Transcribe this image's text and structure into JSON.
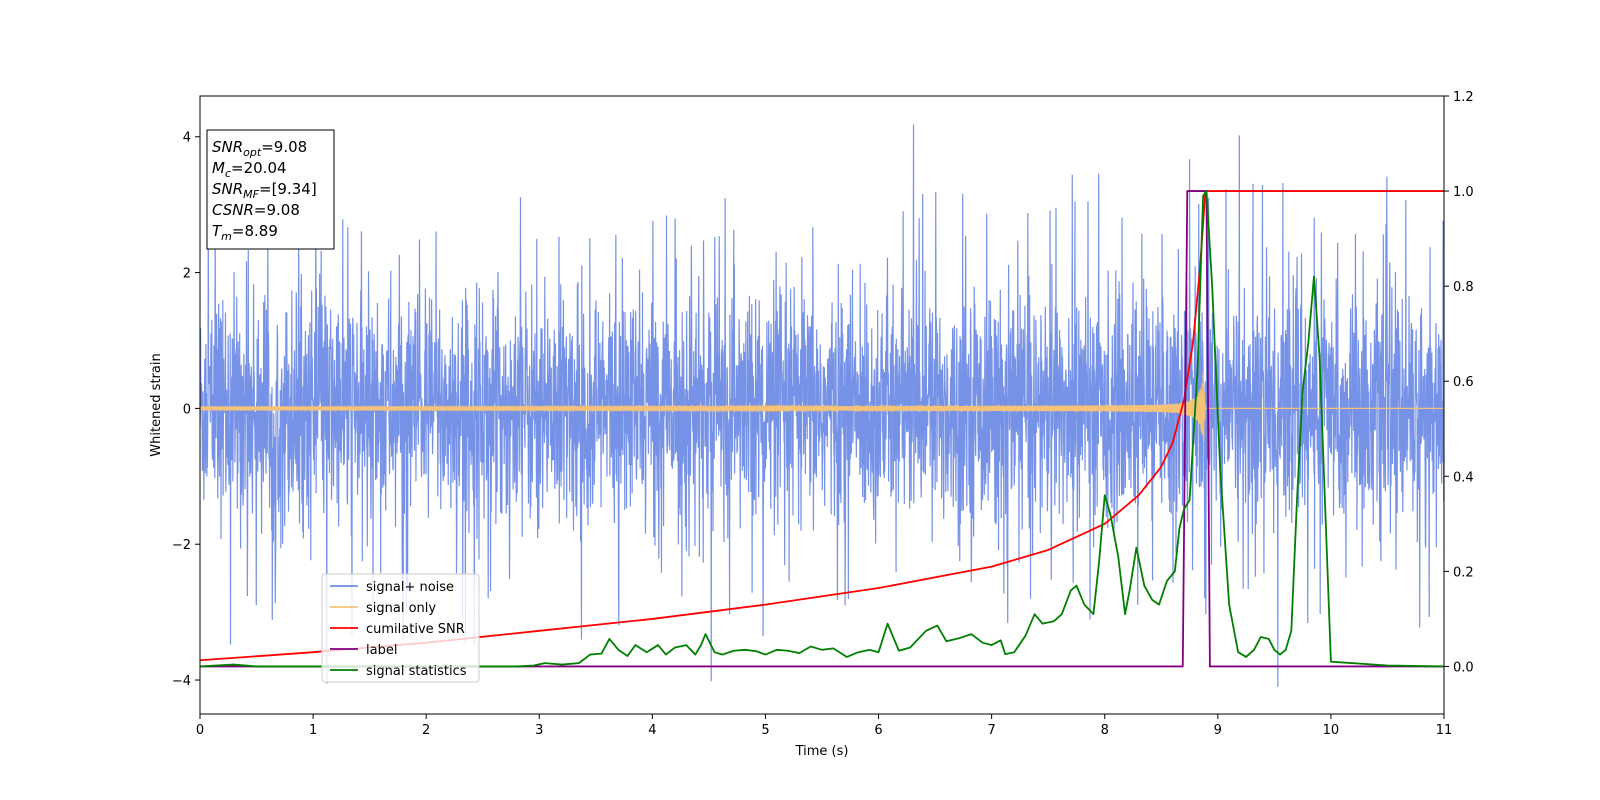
{
  "chart_data": {
    "type": "line",
    "xlabel": "Time (s)",
    "ylabel": "Whitened strain",
    "xlim": [
      0,
      11
    ],
    "ylim": [
      -4.5,
      4.6
    ],
    "y2lim": [
      -0.1,
      1.2
    ],
    "x_ticks": [
      0,
      1,
      2,
      3,
      4,
      5,
      6,
      7,
      8,
      9,
      10,
      11
    ],
    "y_ticks": [
      -4,
      -2,
      0,
      2,
      4
    ],
    "y2_ticks": [
      "0.0",
      "0.2",
      "0.4",
      "0.6",
      "0.8",
      "1.0",
      "1.2"
    ],
    "legend_position": "lower-left",
    "annotation": {
      "lines": [
        {
          "name": "SNR",
          "sub": "opt",
          "value": "=9.08"
        },
        {
          "name": "M",
          "sub": "c",
          "value": "=20.04"
        },
        {
          "name": "SNR",
          "sub": "MF",
          "value": "=[9.34]"
        },
        {
          "name": "CSNR",
          "sub": "",
          "value": "=9.08"
        },
        {
          "name": "T",
          "sub": "m",
          "value": "=8.89"
        }
      ]
    },
    "series": [
      {
        "name": "signal+ noise",
        "color": "#6f8ce6",
        "axis": "left",
        "kind": "noise",
        "typical_range": [
          -1.5,
          1.5
        ],
        "peaks": [
          {
            "x": 6.31,
            "y": 4.18
          },
          {
            "x": 9.19,
            "y": 4.02
          },
          {
            "x": 8.75,
            "y": 3.67
          },
          {
            "x": 9.53,
            "y": -4.1
          },
          {
            "x": 1.12,
            "y": -4.05
          },
          {
            "x": 4.52,
            "y": -4.02
          }
        ]
      },
      {
        "name": "signal only",
        "color": "#f5c27a",
        "axis": "left",
        "kind": "chirp",
        "merger_time": 8.89,
        "peak_amplitude": 0.72
      },
      {
        "name": "cumilative SNR",
        "color": "#ff0000",
        "axis": "right",
        "x": [
          0,
          1,
          2,
          3,
          4,
          5,
          6,
          7,
          7.5,
          8,
          8.3,
          8.5,
          8.6,
          8.7,
          8.78,
          8.84,
          8.89,
          11
        ],
        "y": [
          0.013,
          0.03,
          0.05,
          0.075,
          0.1,
          0.13,
          0.165,
          0.21,
          0.245,
          0.3,
          0.36,
          0.42,
          0.47,
          0.56,
          0.68,
          0.83,
          1.0,
          1.0
        ]
      },
      {
        "name": "label",
        "color": "#800080",
        "axis": "right",
        "x": [
          0,
          8.69,
          8.73,
          8.9,
          8.93,
          11
        ],
        "y": [
          0,
          0,
          1,
          1,
          0,
          0
        ]
      },
      {
        "name": "signal statistics",
        "color": "#008000",
        "axis": "right",
        "x": [
          0,
          0.3,
          0.5,
          1.0,
          1.5,
          2.0,
          2.5,
          2.8,
          2.95,
          3.05,
          3.2,
          3.35,
          3.45,
          3.55,
          3.62,
          3.7,
          3.78,
          3.85,
          3.95,
          4.05,
          4.12,
          4.2,
          4.3,
          4.38,
          4.43,
          4.47,
          4.55,
          4.62,
          4.72,
          4.82,
          4.92,
          5.0,
          5.1,
          5.2,
          5.3,
          5.4,
          5.5,
          5.6,
          5.72,
          5.82,
          5.92,
          6.0,
          6.08,
          6.18,
          6.28,
          6.42,
          6.52,
          6.6,
          6.72,
          6.82,
          6.92,
          7.0,
          7.08,
          7.12,
          7.2,
          7.3,
          7.38,
          7.45,
          7.55,
          7.62,
          7.7,
          7.75,
          7.82,
          7.9,
          7.95,
          8.0,
          8.05,
          8.12,
          8.18,
          8.22,
          8.28,
          8.35,
          8.42,
          8.48,
          8.55,
          8.62,
          8.66,
          8.7,
          8.75,
          8.82,
          8.87,
          8.9,
          8.95,
          9.02,
          9.1,
          9.18,
          9.25,
          9.32,
          9.38,
          9.45,
          9.5,
          9.55,
          9.6,
          9.65,
          9.7,
          9.75,
          9.8,
          9.85,
          9.9,
          10.0,
          10.5,
          11.0
        ],
        "y": [
          0,
          0.004,
          0,
          0,
          0,
          0,
          0,
          0,
          0.002,
          0.007,
          0.004,
          0.007,
          0.025,
          0.027,
          0.058,
          0.035,
          0.022,
          0.045,
          0.03,
          0.045,
          0.025,
          0.04,
          0.045,
          0.025,
          0.045,
          0.068,
          0.03,
          0.025,
          0.033,
          0.035,
          0.032,
          0.025,
          0.035,
          0.033,
          0.028,
          0.042,
          0.035,
          0.038,
          0.02,
          0.03,
          0.035,
          0.03,
          0.09,
          0.033,
          0.04,
          0.075,
          0.086,
          0.053,
          0.06,
          0.068,
          0.05,
          0.045,
          0.055,
          0.026,
          0.03,
          0.065,
          0.11,
          0.09,
          0.095,
          0.11,
          0.16,
          0.17,
          0.13,
          0.11,
          0.22,
          0.36,
          0.32,
          0.23,
          0.11,
          0.16,
          0.25,
          0.17,
          0.14,
          0.13,
          0.18,
          0.2,
          0.29,
          0.33,
          0.35,
          0.62,
          0.99,
          1.0,
          0.8,
          0.42,
          0.13,
          0.03,
          0.02,
          0.035,
          0.062,
          0.058,
          0.035,
          0.025,
          0.035,
          0.075,
          0.35,
          0.58,
          0.68,
          0.82,
          0.65,
          0.01,
          0.002,
          0
        ]
      }
    ]
  }
}
